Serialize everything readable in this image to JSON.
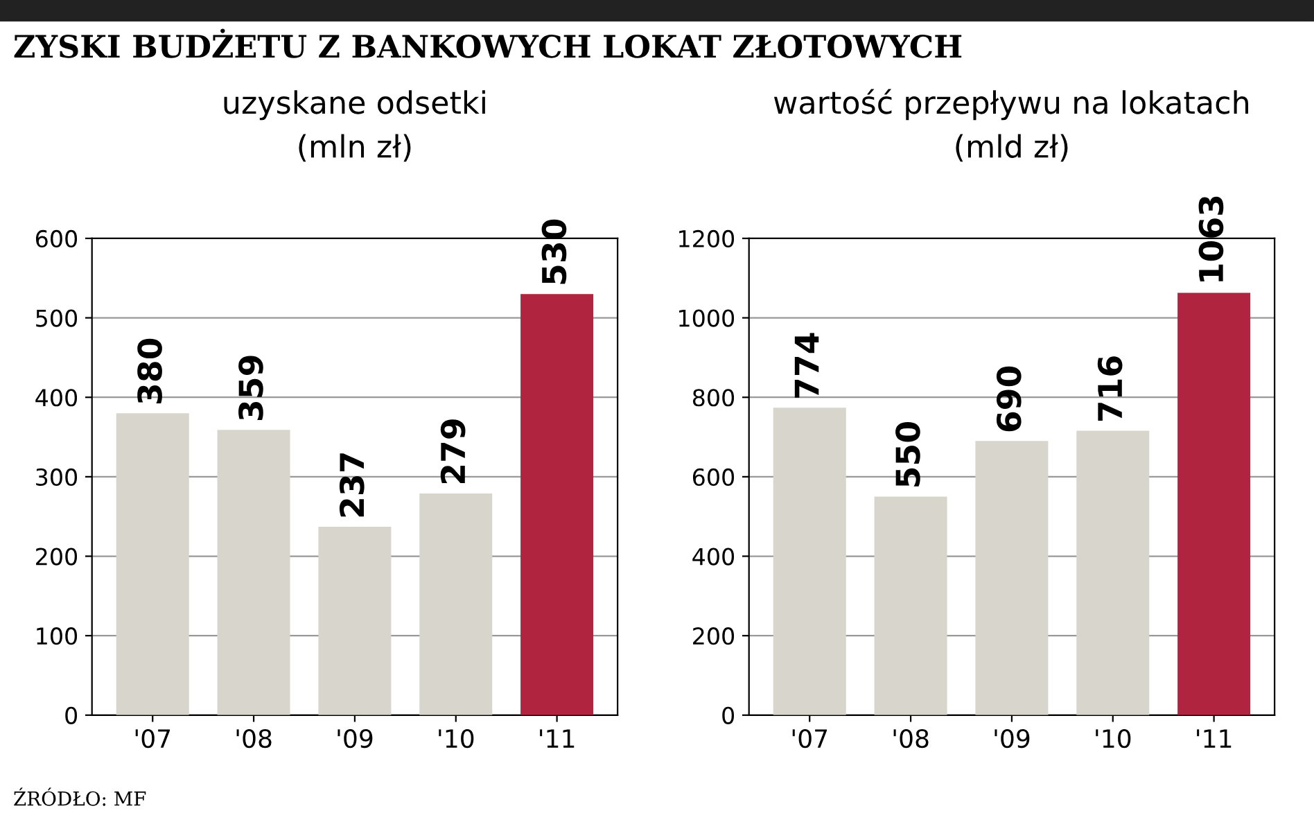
{
  "chart_data": [
    {
      "type": "bar",
      "title": "uzyskane odsetki",
      "subtitle": "(mln zł)",
      "categories": [
        "'07",
        "'08",
        "'09",
        "'10",
        "'11"
      ],
      "values": [
        380,
        359,
        237,
        279,
        530
      ],
      "colors": [
        "#d7d5cc",
        "#d7d5cc",
        "#d7d5cc",
        "#d7d5cc",
        "#b0243f"
      ],
      "ylim": [
        0,
        600
      ],
      "yticks": [
        0,
        100,
        200,
        300,
        400,
        500,
        600
      ],
      "grid": "y",
      "data_labels": true,
      "annotations": [
        "ZYSKI BUDŻETU Z BANKOWYCH LOKAT ZŁOTOWYCH",
        "ŹRÓDŁO: MF"
      ]
    },
    {
      "type": "bar",
      "title": "wartość przepływu na lokatach",
      "subtitle": "(mld zł)",
      "categories": [
        "'07",
        "'08",
        "'09",
        "'10",
        "'11"
      ],
      "values": [
        774,
        550,
        690,
        716,
        1063
      ],
      "colors": [
        "#d7d5cc",
        "#d7d5cc",
        "#d7d5cc",
        "#d7d5cc",
        "#b0243f"
      ],
      "ylim": [
        0,
        1200
      ],
      "yticks": [
        0,
        200,
        400,
        600,
        800,
        1000,
        1200
      ],
      "grid": "y",
      "data_labels": true
    }
  ]
}
